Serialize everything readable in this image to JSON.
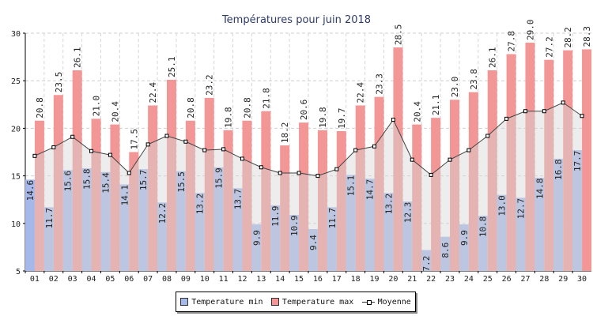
{
  "chart_data": {
    "type": "bar",
    "title": "Températures pour juin 2018",
    "categories": [
      "01",
      "02",
      "03",
      "04",
      "05",
      "06",
      "07",
      "08",
      "09",
      "10",
      "11",
      "12",
      "13",
      "14",
      "15",
      "16",
      "17",
      "18",
      "19",
      "20",
      "21",
      "22",
      "23",
      "24",
      "25",
      "26",
      "27",
      "28",
      "29",
      "30"
    ],
    "series": [
      {
        "name": "Temperature min",
        "type": "bar",
        "color": "#a6b8ea",
        "values": [
          14.6,
          11.7,
          15.6,
          15.8,
          15.4,
          14.1,
          15.7,
          12.2,
          15.5,
          13.2,
          15.9,
          13.7,
          9.9,
          11.9,
          10.9,
          9.4,
          11.7,
          15.1,
          14.7,
          13.2,
          12.3,
          7.2,
          8.6,
          9.9,
          10.8,
          13.0,
          12.7,
          14.8,
          16.8,
          17.7
        ]
      },
      {
        "name": "Temperature max",
        "type": "bar",
        "color": "#f29696",
        "values": [
          20.8,
          23.5,
          26.1,
          21.0,
          20.4,
          17.5,
          22.4,
          25.1,
          20.8,
          23.2,
          19.8,
          20.8,
          21.8,
          18.2,
          20.6,
          19.8,
          19.7,
          22.4,
          23.3,
          28.5,
          20.4,
          21.1,
          23.0,
          23.8,
          26.1,
          27.8,
          29.0,
          27.2,
          28.2,
          28.3
        ]
      },
      {
        "name": "Moyenne",
        "type": "line",
        "color": "#333333",
        "values": [
          17.1,
          18.0,
          19.1,
          17.6,
          17.2,
          15.3,
          18.3,
          19.2,
          18.6,
          17.7,
          17.8,
          16.8,
          15.9,
          15.3,
          15.3,
          15.0,
          15.7,
          17.7,
          18.1,
          20.9,
          16.7,
          15.1,
          16.7,
          17.7,
          19.2,
          21.0,
          21.8,
          21.8,
          22.7,
          21.3
        ]
      }
    ],
    "ylim": [
      5,
      30
    ],
    "yticks": [
      5,
      10,
      15,
      20,
      25,
      30
    ],
    "xlabel": "",
    "ylabel": "",
    "grid": true,
    "legend_position": "bottom"
  },
  "legend": {
    "min_label": "Temperature min",
    "max_label": "Temperature max",
    "avg_label": "Moyenne"
  }
}
